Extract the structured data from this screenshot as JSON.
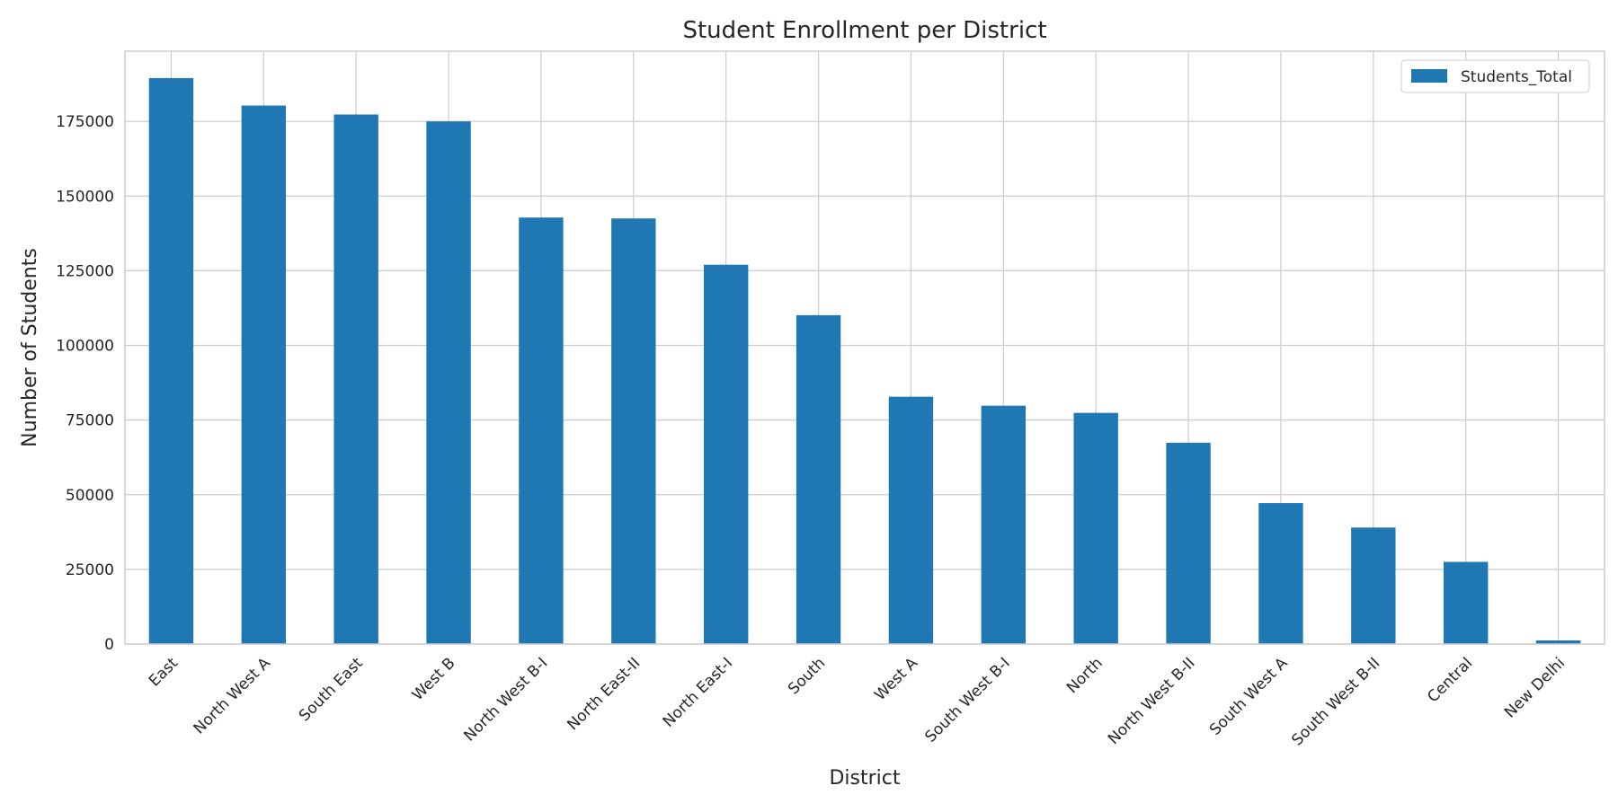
{
  "chart_data": {
    "type": "bar",
    "title": "Student Enrollment per District",
    "xlabel": "District",
    "ylabel": "Number of Students",
    "categories": [
      "East",
      "North West A",
      "South East",
      "West B",
      "North West B-I",
      "North East-II",
      "North East-I",
      "South",
      "West A",
      "South West B-I",
      "North",
      "North West B-II",
      "South West A",
      "South West B-II",
      "Central",
      "New Delhi"
    ],
    "series": [
      {
        "name": "Students_Total",
        "color": "#1f77b4",
        "values": [
          189500,
          180300,
          177300,
          175000,
          142800,
          142500,
          127000,
          110100,
          82800,
          79800,
          77400,
          67400,
          47200,
          39000,
          27500,
          1200
        ]
      }
    ],
    "ylim": [
      0,
      198500
    ],
    "yticks": [
      0,
      25000,
      50000,
      75000,
      100000,
      125000,
      150000,
      175000
    ],
    "ytick_labels": [
      "0",
      "25000",
      "50000",
      "75000",
      "100000",
      "125000",
      "150000",
      "175000"
    ],
    "grid": true,
    "legend_position": "top-right"
  }
}
